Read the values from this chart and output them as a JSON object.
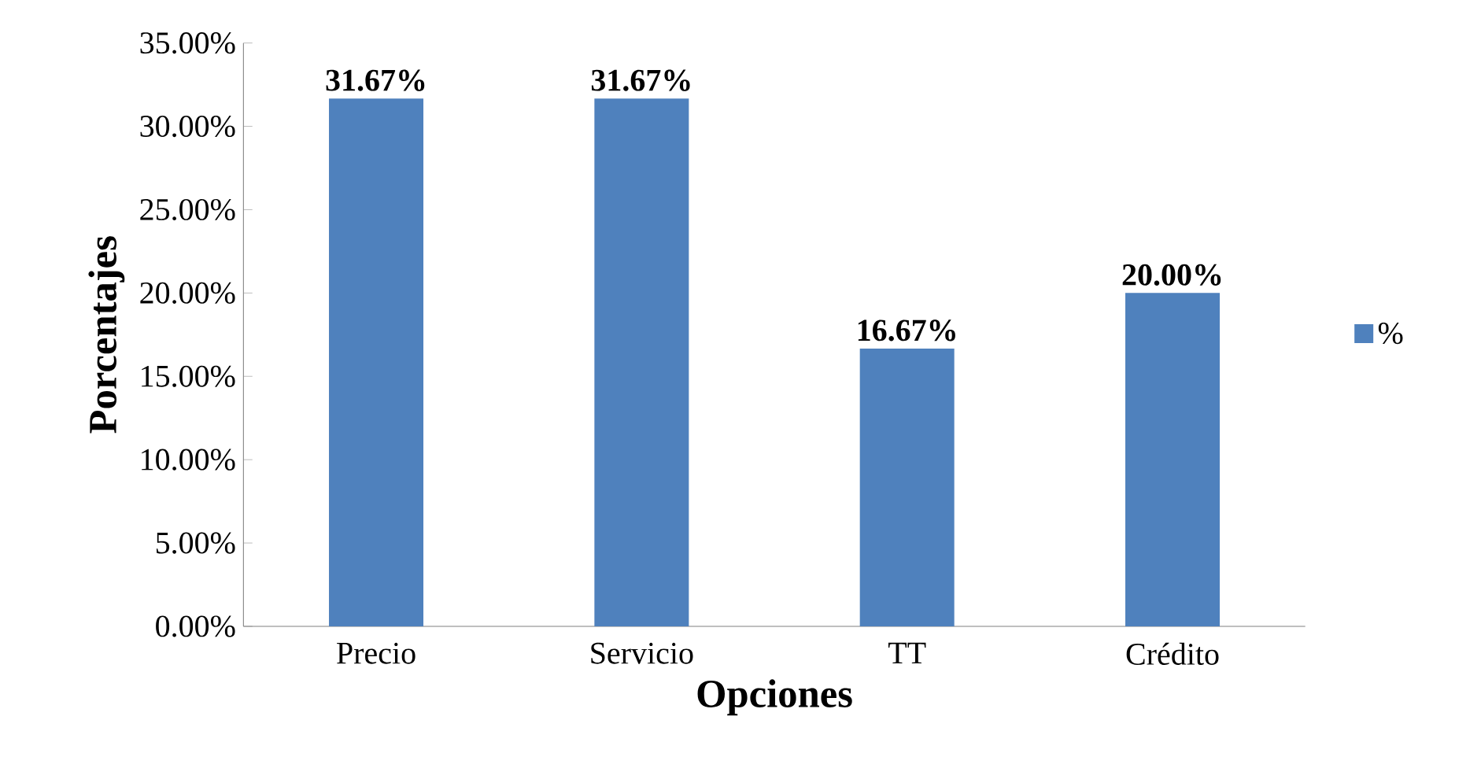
{
  "chart_data": {
    "type": "bar",
    "xlabel": "Opciones",
    "ylabel": "Porcentajes",
    "categories": [
      "Precio",
      "Servicio",
      "TT",
      "Crédito"
    ],
    "series": [
      {
        "name": "%",
        "color": "#4f81bd",
        "values": [
          31.67,
          31.67,
          16.67,
          20.0
        ]
      }
    ],
    "value_labels": [
      "31.67%",
      "31.67%",
      "16.67%",
      "20.00%"
    ],
    "ylim": [
      0,
      35
    ],
    "yticks": [
      {
        "value": 0,
        "label": "0.00%"
      },
      {
        "value": 5,
        "label": "5.00%"
      },
      {
        "value": 10,
        "label": "10.00%"
      },
      {
        "value": 15,
        "label": "15.00%"
      },
      {
        "value": 20,
        "label": "20.00%"
      },
      {
        "value": 25,
        "label": "25.00%"
      },
      {
        "value": 30,
        "label": "30.00%"
      },
      {
        "value": 35,
        "label": "35.00%"
      }
    ],
    "grid": false,
    "legend": "right"
  }
}
